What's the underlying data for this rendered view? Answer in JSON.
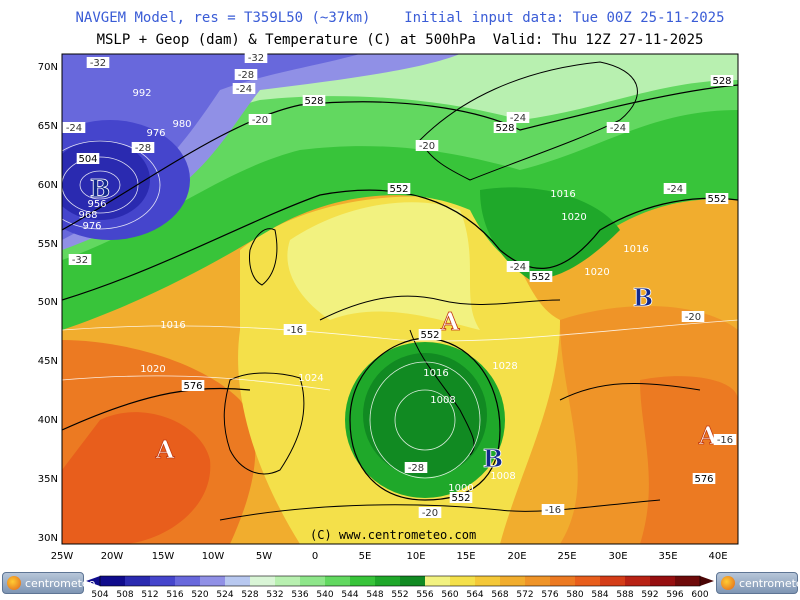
{
  "titles": {
    "line1": "NAVGEM Model, res = T359L50 (~37km)    Initial input data: Tue 00Z 25-11-2025",
    "line2": "MSLP + Geop (dam) & Temperature (C) at 500hPa  Valid: Thu 12Z 27-11-2025"
  },
  "copyright": "(C) www.centrometeo.com",
  "logo_text": "centrometeo",
  "lat_labels": [
    "70N",
    "65N",
    "60N",
    "55N",
    "50N",
    "45N",
    "40N",
    "35N",
    "30N"
  ],
  "lon_labels": [
    "25W",
    "20W",
    "15W",
    "10W",
    "5W",
    "0",
    "5E",
    "10E",
    "15E",
    "20E",
    "25E",
    "30E",
    "35E",
    "40E"
  ],
  "colorbar": {
    "values": [
      "504",
      "508",
      "512",
      "516",
      "520",
      "524",
      "528",
      "532",
      "536",
      "540",
      "544",
      "548",
      "552",
      "556",
      "560",
      "564",
      "568",
      "572",
      "576",
      "580",
      "584",
      "588",
      "592",
      "596",
      "600"
    ],
    "colors": [
      "#0f0b8c",
      "#2a2ab0",
      "#4545cc",
      "#6868dc",
      "#9090e6",
      "#b8c8f0",
      "#d9f5d6",
      "#b8f0b0",
      "#8ee68a",
      "#62d860",
      "#38c43a",
      "#1fa82a",
      "#118a22",
      "#f2f280",
      "#f4e04a",
      "#f4c838",
      "#f1ad2e",
      "#ef9428",
      "#ec7a22",
      "#e85e1c",
      "#d43d18",
      "#b82214",
      "#960f10",
      "#6e0a0a",
      "#4a0505"
    ]
  },
  "pressure_systems": [
    {
      "letter": "A",
      "type": "high"
    },
    {
      "letter": "A",
      "type": "high"
    },
    {
      "letter": "A",
      "type": "high"
    },
    {
      "letter": "B",
      "type": "low"
    },
    {
      "letter": "B",
      "type": "low"
    },
    {
      "letter": "B",
      "type": "low"
    }
  ],
  "geop_labels": [
    "504",
    "528",
    "528",
    "528",
    "552",
    "552",
    "552",
    "552",
    "552",
    "576",
    "576"
  ],
  "temp_labels": [
    "-32",
    "-32",
    "-28",
    "-24",
    "-24",
    "-20",
    "-20",
    "-24",
    "-28",
    "-24",
    "-24",
    "-20",
    "-16",
    "-28",
    "-20",
    "-16",
    "-16",
    "-24",
    "-32"
  ],
  "mslp_labels": [
    "992",
    "976",
    "980",
    "956",
    "968",
    "976",
    "1016",
    "1020",
    "1016",
    "1016",
    "1020",
    "1020",
    "1024",
    "1016",
    "1008",
    "1028",
    "1008",
    "1000"
  ]
}
